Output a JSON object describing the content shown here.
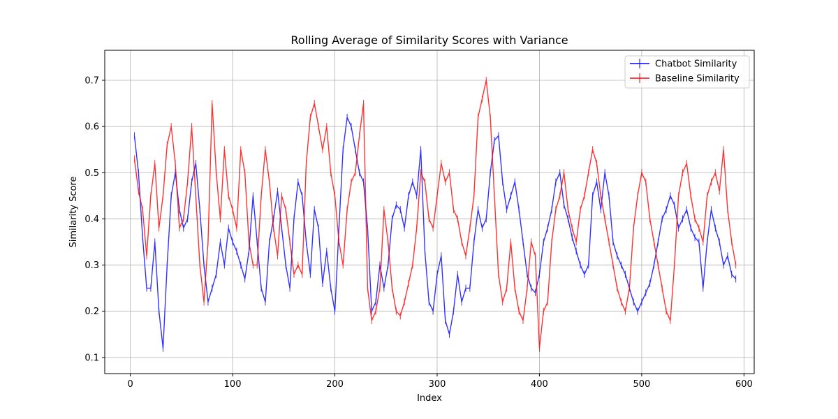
{
  "chart_data": {
    "type": "line",
    "title": "Rolling Average of Similarity Scores with Variance",
    "xlabel": "Index",
    "ylabel": "Similarity Score",
    "xlim": [
      -25,
      610
    ],
    "ylim": [
      0.065,
      0.765
    ],
    "xticks": [
      0,
      100,
      200,
      300,
      400,
      500,
      600
    ],
    "yticks": [
      0.1,
      0.2,
      0.3,
      0.4,
      0.5,
      0.6,
      0.7
    ],
    "xtick_labels": [
      "0",
      "100",
      "200",
      "300",
      "400",
      "500",
      "600"
    ],
    "ytick_labels": [
      "0.1",
      "0.2",
      "0.3",
      "0.4",
      "0.5",
      "0.6",
      "0.7"
    ],
    "grid": true,
    "legend_position": "top-right",
    "x_start": 4,
    "x_step": 4,
    "series": [
      {
        "name": "Chatbot Similarity",
        "color": "#0000ff",
        "values": [
          0.58,
          0.5,
          0.36,
          0.25,
          0.25,
          0.35,
          0.2,
          0.12,
          0.3,
          0.45,
          0.5,
          0.42,
          0.38,
          0.4,
          0.48,
          0.52,
          0.42,
          0.3,
          0.22,
          0.25,
          0.28,
          0.35,
          0.3,
          0.38,
          0.35,
          0.33,
          0.3,
          0.27,
          0.33,
          0.45,
          0.35,
          0.25,
          0.22,
          0.35,
          0.4,
          0.46,
          0.38,
          0.3,
          0.25,
          0.4,
          0.48,
          0.45,
          0.35,
          0.28,
          0.42,
          0.38,
          0.26,
          0.33,
          0.25,
          0.2,
          0.38,
          0.55,
          0.62,
          0.6,
          0.55,
          0.5,
          0.48,
          0.38,
          0.2,
          0.22,
          0.3,
          0.25,
          0.3,
          0.4,
          0.43,
          0.42,
          0.38,
          0.45,
          0.48,
          0.45,
          0.55,
          0.33,
          0.22,
          0.2,
          0.28,
          0.32,
          0.18,
          0.15,
          0.2,
          0.28,
          0.22,
          0.25,
          0.25,
          0.35,
          0.42,
          0.38,
          0.4,
          0.5,
          0.57,
          0.58,
          0.48,
          0.42,
          0.45,
          0.48,
          0.42,
          0.35,
          0.28,
          0.25,
          0.24,
          0.28,
          0.35,
          0.38,
          0.42,
          0.48,
          0.5,
          0.43,
          0.4,
          0.36,
          0.33,
          0.3,
          0.28,
          0.3,
          0.45,
          0.48,
          0.42,
          0.5,
          0.45,
          0.35,
          0.32,
          0.3,
          0.28,
          0.25,
          0.22,
          0.2,
          0.22,
          0.24,
          0.26,
          0.3,
          0.35,
          0.4,
          0.42,
          0.45,
          0.43,
          0.38,
          0.4,
          0.42,
          0.38,
          0.36,
          0.35,
          0.25,
          0.35,
          0.42,
          0.38,
          0.35,
          0.3,
          0.32,
          0.28,
          0.27
        ]
      },
      {
        "name": "Baseline Similarity",
        "color": "#ff0000",
        "values": [
          0.53,
          0.46,
          0.42,
          0.32,
          0.45,
          0.52,
          0.38,
          0.45,
          0.56,
          0.6,
          0.52,
          0.38,
          0.4,
          0.48,
          0.6,
          0.45,
          0.3,
          0.22,
          0.35,
          0.65,
          0.5,
          0.4,
          0.55,
          0.45,
          0.42,
          0.38,
          0.55,
          0.5,
          0.35,
          0.3,
          0.3,
          0.45,
          0.55,
          0.48,
          0.38,
          0.32,
          0.45,
          0.42,
          0.35,
          0.28,
          0.3,
          0.28,
          0.52,
          0.62,
          0.65,
          0.6,
          0.55,
          0.6,
          0.5,
          0.45,
          0.35,
          0.3,
          0.42,
          0.48,
          0.5,
          0.58,
          0.65,
          0.25,
          0.18,
          0.2,
          0.25,
          0.42,
          0.35,
          0.25,
          0.2,
          0.19,
          0.22,
          0.26,
          0.3,
          0.38,
          0.5,
          0.48,
          0.4,
          0.38,
          0.45,
          0.52,
          0.48,
          0.5,
          0.42,
          0.4,
          0.35,
          0.32,
          0.38,
          0.45,
          0.62,
          0.66,
          0.7,
          0.62,
          0.45,
          0.28,
          0.22,
          0.25,
          0.35,
          0.25,
          0.2,
          0.18,
          0.25,
          0.35,
          0.32,
          0.12,
          0.2,
          0.22,
          0.35,
          0.42,
          0.45,
          0.5,
          0.42,
          0.38,
          0.35,
          0.42,
          0.45,
          0.5,
          0.55,
          0.52,
          0.45,
          0.4,
          0.35,
          0.3,
          0.25,
          0.22,
          0.2,
          0.25,
          0.38,
          0.45,
          0.5,
          0.48,
          0.4,
          0.35,
          0.3,
          0.25,
          0.2,
          0.18,
          0.3,
          0.45,
          0.5,
          0.52,
          0.45,
          0.4,
          0.38,
          0.35,
          0.45,
          0.48,
          0.5,
          0.46,
          0.55,
          0.42,
          0.35,
          0.3
        ]
      }
    ]
  }
}
